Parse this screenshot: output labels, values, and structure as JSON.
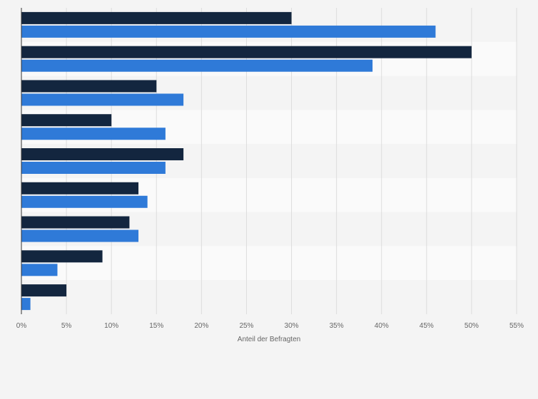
{
  "chart_data": {
    "type": "bar",
    "orientation": "horizontal",
    "categories": [
      "",
      "",
      "",
      "",
      "",
      "",
      "",
      "",
      ""
    ],
    "series": [
      {
        "values": [
          30,
          50,
          15,
          10,
          18,
          13,
          12,
          9,
          5
        ],
        "color": "#13263f"
      },
      {
        "values": [
          46,
          39,
          18,
          16,
          16,
          14,
          13,
          4,
          1
        ],
        "color": "#2f7ad8"
      }
    ],
    "xlabel": "Anteil der Befragten",
    "xlim": [
      0,
      55
    ],
    "xticks": [
      0,
      5,
      10,
      15,
      20,
      25,
      30,
      35,
      40,
      45,
      50,
      55
    ],
    "tick_suffix": "%",
    "grid": true,
    "legend": "none"
  }
}
